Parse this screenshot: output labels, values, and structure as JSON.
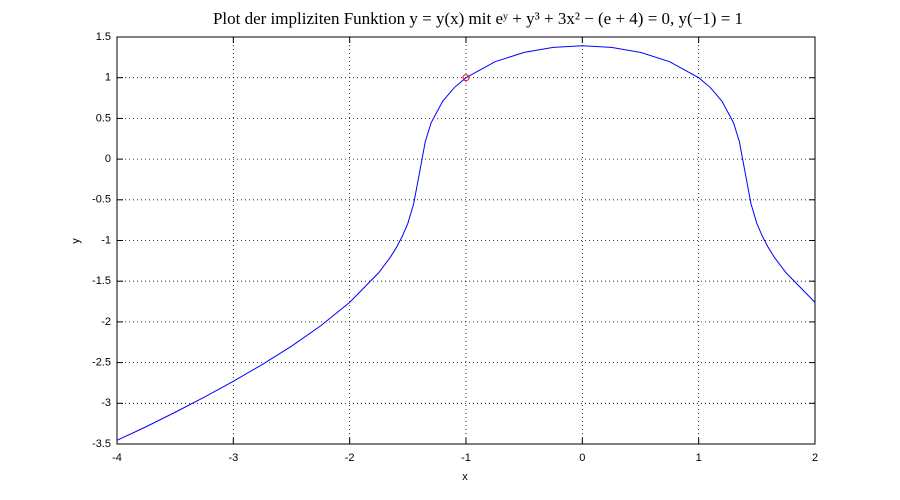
{
  "chart_data": {
    "type": "line",
    "title": "Plot der impliziten Funktion y = y(x) mit eʸ + y³ + 3x² − (e + 4) = 0, y(−1) = 1",
    "xlabel": "x",
    "ylabel": "y",
    "x": [
      -4,
      -3.75,
      -3.5,
      -3.25,
      -3,
      -2.75,
      -2.5,
      -2.25,
      -2,
      -1.75,
      -1.65,
      -1.6,
      -1.55,
      -1.5,
      -1.45,
      -1.4,
      -1.35,
      -1.3,
      -1.2,
      -1.1,
      -1,
      -0.75,
      -0.5,
      -0.25,
      0,
      0.25,
      0.5,
      0.75,
      1,
      1.1,
      1.2,
      1.3,
      1.35,
      1.4,
      1.45,
      1.5,
      1.55,
      1.6,
      1.65,
      1.75,
      2
    ],
    "series": [
      {
        "color": "#0000ff",
        "values": [
          -3.455,
          -3.288,
          -3.11,
          -2.925,
          -2.73,
          -2.522,
          -2.298,
          -2.049,
          -1.76,
          -1.395,
          -1.205,
          -1.09,
          -0.956,
          -0.79,
          -0.55,
          -0.17,
          0.215,
          0.445,
          0.712,
          0.879,
          1,
          1.197,
          1.311,
          1.372,
          1.392,
          1.372,
          1.311,
          1.197,
          1,
          0.879,
          0.712,
          0.445,
          0.215,
          -0.17,
          -0.55,
          -0.79,
          -0.956,
          -1.09,
          -1.205,
          -1.395,
          -1.76
        ]
      }
    ],
    "points": [
      {
        "x": -1,
        "y": 1,
        "color": "#ff0000"
      }
    ],
    "xlim": [
      -4,
      2
    ],
    "ylim": [
      -3.5,
      1.5
    ],
    "xticks": [
      -4,
      -3,
      -2,
      -1,
      0,
      1,
      2
    ],
    "yticks": [
      -3.5,
      -3,
      -2.5,
      -2,
      -1.5,
      -1,
      -0.5,
      0,
      0.5,
      1,
      1.5
    ],
    "grid": true
  }
}
